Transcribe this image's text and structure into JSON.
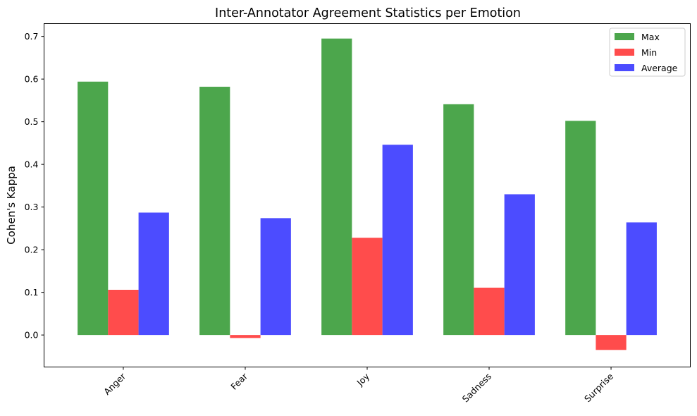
{
  "chart_data": {
    "type": "bar",
    "title": "Inter-Annotator Agreement Statistics per Emotion",
    "xlabel": "",
    "ylabel": "Cohen's Kappa",
    "categories": [
      "Anger",
      "Fear",
      "Joy",
      "Sadness",
      "Surprise"
    ],
    "series": [
      {
        "name": "Max",
        "color": "#4ca64c",
        "values": [
          0.594,
          0.582,
          0.695,
          0.541,
          0.502
        ]
      },
      {
        "name": "Min",
        "color": "#ff4c4c",
        "values": [
          0.106,
          -0.007,
          0.228,
          0.111,
          -0.035
        ]
      },
      {
        "name": "Average",
        "color": "#4c4cff",
        "values": [
          0.287,
          0.274,
          0.446,
          0.33,
          0.264
        ]
      }
    ],
    "ylim": [
      -0.075,
      0.73
    ],
    "yticks": [
      "0.0",
      "0.1",
      "0.2",
      "0.3",
      "0.4",
      "0.5",
      "0.6",
      "0.7"
    ],
    "ytick_values": [
      0.0,
      0.1,
      0.2,
      0.3,
      0.4,
      0.5,
      0.6,
      0.7
    ],
    "xtick_rotation_deg": 45,
    "grid": false,
    "legend_position": "top-right"
  }
}
